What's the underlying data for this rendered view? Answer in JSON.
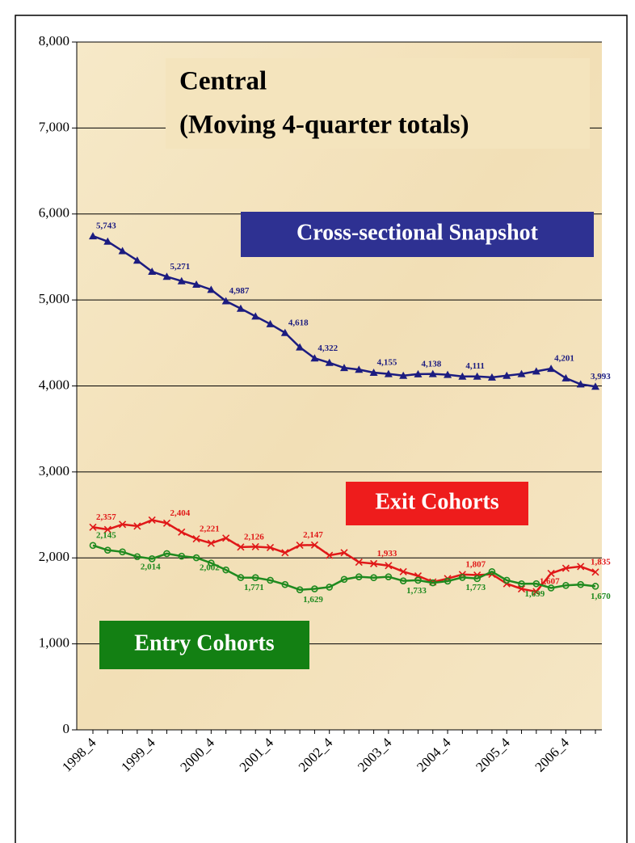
{
  "chart_data": {
    "type": "line",
    "title": "Central",
    "subtitle": "(Moving 4-quarter totals)",
    "categories": [
      "1998_4",
      null,
      null,
      null,
      "1999_4",
      null,
      null,
      null,
      "2000_4",
      null,
      null,
      null,
      "2001_4",
      null,
      null,
      null,
      "2002_4",
      null,
      null,
      null,
      "2003_4",
      null,
      null,
      null,
      "2004_4",
      null,
      null,
      null,
      "2005_4",
      null,
      null,
      null,
      "2006_4",
      null,
      null
    ],
    "series": [
      {
        "name": "Cross-sectional Snapshot",
        "color": "#1c1c80",
        "marker": "triangle",
        "values": [
          5743,
          5680,
          5570,
          5460,
          5330,
          5271,
          5220,
          5180,
          5120,
          4987,
          4900,
          4810,
          4720,
          4618,
          4450,
          4322,
          4270,
          4210,
          4190,
          4155,
          4140,
          4120,
          4138,
          4140,
          4130,
          4111,
          4110,
          4100,
          4120,
          4140,
          4170,
          4201,
          4090,
          4020,
          3993
        ],
        "value_labels": [
          "5,743",
          null,
          null,
          null,
          null,
          "5,271",
          null,
          null,
          null,
          "4,987",
          null,
          null,
          null,
          "4,618",
          null,
          "4,322",
          null,
          null,
          null,
          "4,155",
          null,
          null,
          "4,138",
          null,
          null,
          "4,111",
          null,
          null,
          null,
          null,
          null,
          "4,201",
          null,
          null,
          "3,993"
        ]
      },
      {
        "name": "Exit Cohorts",
        "color": "#e01818",
        "marker": "x",
        "values": [
          2357,
          2330,
          2390,
          2370,
          2440,
          2404,
          2300,
          2221,
          2170,
          2230,
          2126,
          2130,
          2120,
          2060,
          2147,
          2150,
          2030,
          2060,
          1950,
          1933,
          1910,
          1840,
          1790,
          1720,
          1760,
          1807,
          1800,
          1810,
          1700,
          1640,
          1607,
          1820,
          1880,
          1900,
          1835
        ],
        "value_labels": [
          "2,357",
          null,
          null,
          null,
          null,
          "2,404",
          null,
          "2,221",
          null,
          null,
          "2,126",
          null,
          null,
          null,
          "2,147",
          null,
          null,
          null,
          null,
          "1,933",
          null,
          null,
          null,
          null,
          null,
          "1,807",
          null,
          null,
          null,
          null,
          "1,607",
          null,
          null,
          null,
          "1,835"
        ]
      },
      {
        "name": "Entry Cohorts",
        "color": "#1f8a1f",
        "marker": "circle",
        "values": [
          2145,
          2090,
          2070,
          2014,
          1990,
          2050,
          2020,
          2002,
          1940,
          1860,
          1771,
          1770,
          1740,
          1690,
          1629,
          1640,
          1660,
          1750,
          1780,
          1770,
          1780,
          1733,
          1740,
          1710,
          1730,
          1773,
          1760,
          1840,
          1740,
          1699,
          1700,
          1650,
          1680,
          1690,
          1670
        ],
        "value_labels": [
          "2,145",
          null,
          null,
          "2,014",
          null,
          null,
          null,
          "2,002",
          null,
          null,
          "1,771",
          null,
          null,
          null,
          "1,629",
          null,
          null,
          null,
          null,
          null,
          null,
          "1,733",
          null,
          null,
          null,
          "1,773",
          null,
          null,
          null,
          "1,699",
          null,
          null,
          null,
          null,
          "1,670"
        ]
      }
    ],
    "ylim": [
      0,
      8000
    ],
    "yticks": [
      0,
      {
        "value": 1000,
        "label": "1,000"
      },
      {
        "value": 2000,
        "label": "2,000"
      },
      {
        "value": 3000,
        "label": "3,000"
      },
      {
        "value": 4000,
        "label": "4,000"
      },
      {
        "value": 5000,
        "label": "5,000"
      },
      {
        "value": 6000,
        "label": "6,000"
      },
      {
        "value": 7000,
        "label": "7,000"
      },
      {
        "value": 8000,
        "label": "8,000"
      }
    ],
    "grid": true
  }
}
